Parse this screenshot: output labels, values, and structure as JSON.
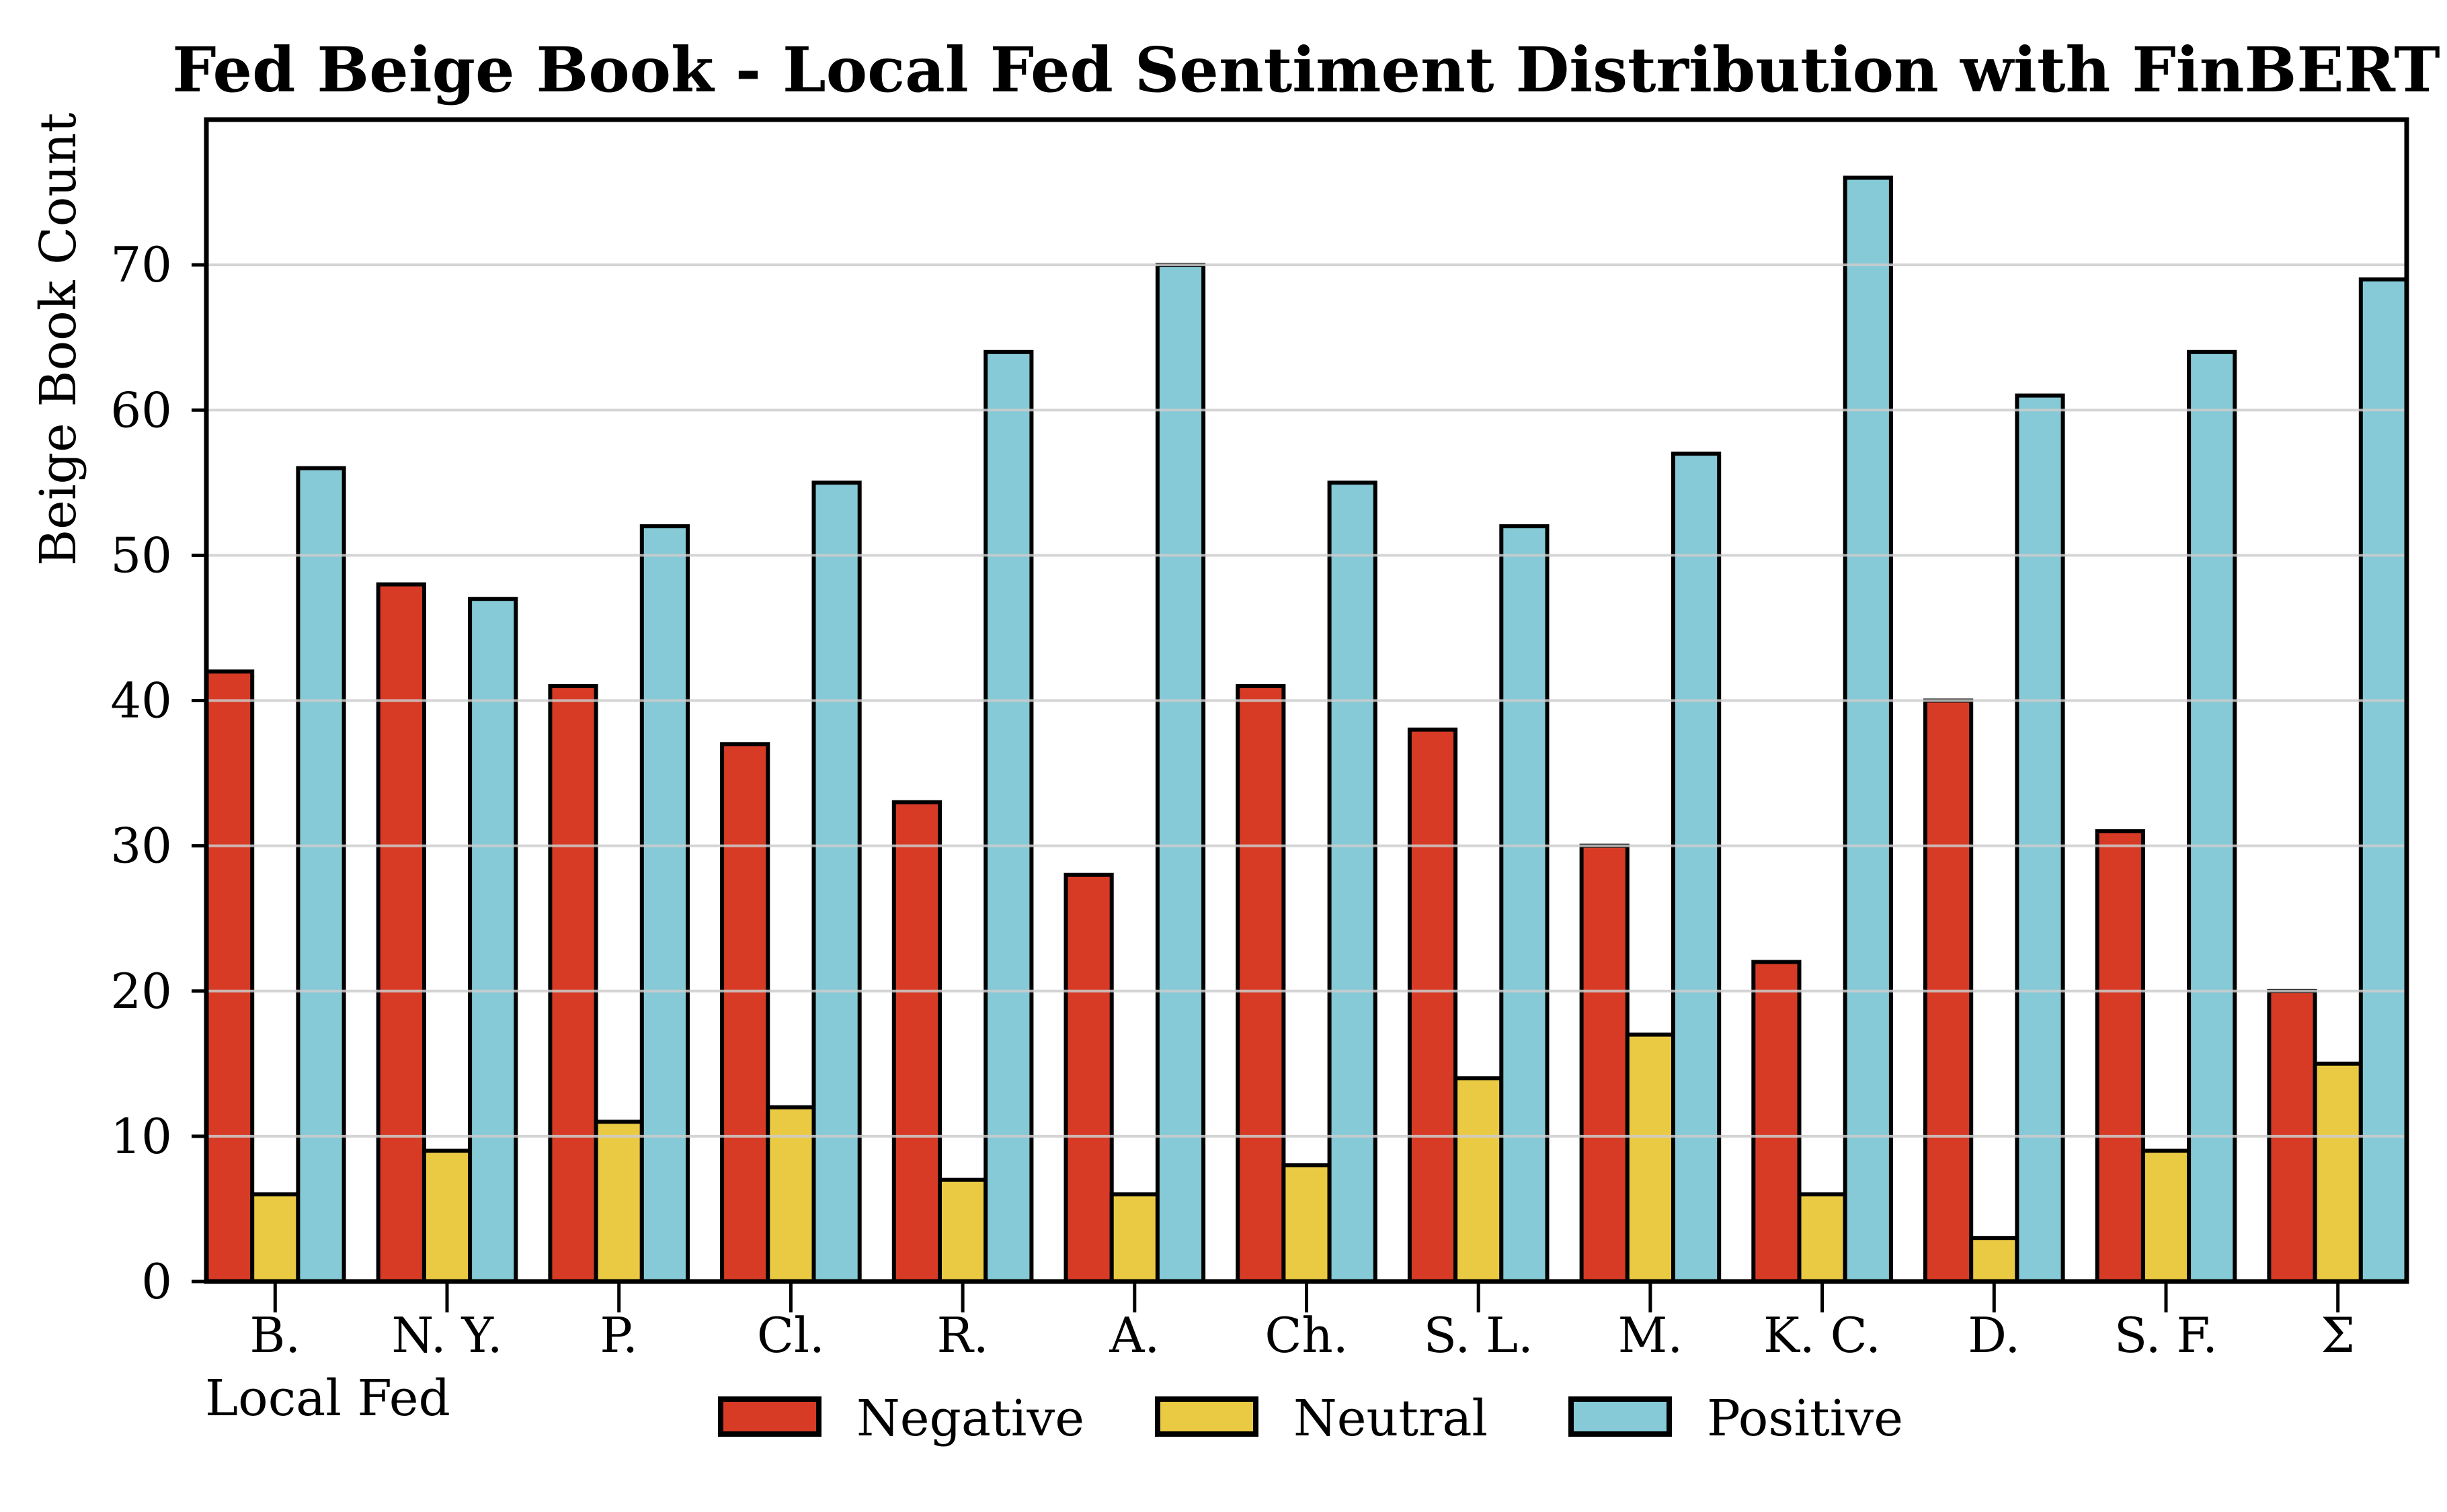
{
  "figure": {
    "title": "Fed Beige Book - Local Fed Sentiment Distribution with FinBERT"
  },
  "chart_data": {
    "type": "bar",
    "title": "Fed Beige Book - Local Fed Sentiment Distribution with FinBERT",
    "xlabel": "Local Fed",
    "ylabel": "Beige Book Count",
    "categories": [
      "B.",
      "N. Y.",
      "P.",
      "Cl.",
      "R.",
      "A.",
      "Ch.",
      "S. L.",
      "M.",
      "K. C.",
      "D.",
      "S. F.",
      "Σ"
    ],
    "series": [
      {
        "name": "Negative",
        "color": "#d73b26",
        "values": [
          42,
          48,
          41,
          37,
          33,
          28,
          41,
          38,
          30,
          22,
          40,
          31,
          20
        ]
      },
      {
        "name": "Neutral",
        "color": "#ebca43",
        "values": [
          6,
          9,
          11,
          12,
          7,
          6,
          8,
          14,
          17,
          6,
          3,
          9,
          15
        ]
      },
      {
        "name": "Positive",
        "color": "#85cad6",
        "values": [
          56,
          47,
          52,
          55,
          64,
          70,
          55,
          52,
          57,
          76,
          61,
          64,
          69
        ]
      }
    ],
    "ylim": [
      0,
      80
    ],
    "yticks": [
      0,
      10,
      20,
      30,
      40,
      50,
      60,
      70
    ],
    "grid": "horizontal",
    "gridline_color": "#cdcdcd",
    "bar_edge_color": "#000000",
    "legend_position": "bottom",
    "legend_labels": [
      "Negative",
      "Neutral",
      "Positive"
    ]
  }
}
